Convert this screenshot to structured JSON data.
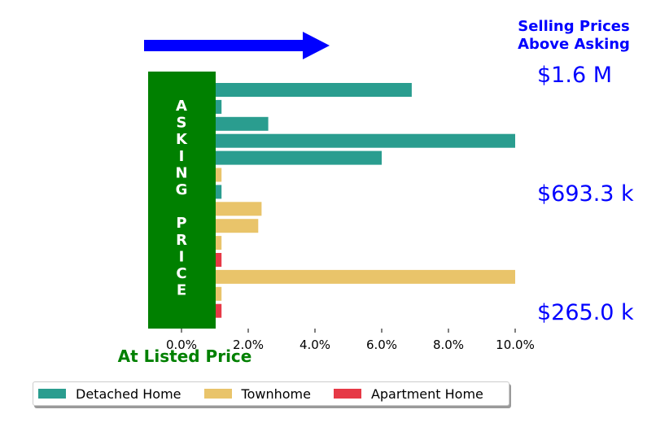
{
  "colors": {
    "detached": "#2a9d8f",
    "townhome": "#e9c46a",
    "apartment": "#e63946",
    "asking_box": "#008000",
    "arrow": "#0000ff",
    "annotation_text": "#0000ff",
    "listed_text": "#008000"
  },
  "annotations": {
    "selling_title_line1": "Selling Prices",
    "selling_title_line2": "Above Asking",
    "at_listed_price": "At Listed Price",
    "asking_price_letters": [
      "A",
      "S",
      "K",
      "I",
      "N",
      "G",
      "",
      "P",
      "R",
      "I",
      "C",
      "E"
    ],
    "price_levels": [
      "$1.6 M",
      "$693.3 k",
      "$265.0 k"
    ]
  },
  "chart_data": {
    "type": "bar",
    "orientation": "horizontal",
    "xlim": [
      -1.0,
      10.0
    ],
    "xticks": [
      0,
      2,
      4,
      6,
      8,
      10
    ],
    "xtick_labels": [
      "0.0%",
      "2.0%",
      "4.0%",
      "6.0%",
      "8.0%",
      "10.0%"
    ],
    "grid": false,
    "legend_placement": "below",
    "bars": [
      {
        "category": "Detached Home",
        "value": 6.9
      },
      {
        "category": "Detached Home",
        "value": 1.2
      },
      {
        "category": "Detached Home",
        "value": 2.6
      },
      {
        "category": "Detached Home",
        "value": 10.0
      },
      {
        "category": "Detached Home",
        "value": 6.0
      },
      {
        "category": "Townhome",
        "value": 1.2
      },
      {
        "category": "Detached Home",
        "value": 1.2
      },
      {
        "category": "Townhome",
        "value": 2.4
      },
      {
        "category": "Townhome",
        "value": 2.3
      },
      {
        "category": "Townhome",
        "value": 1.2
      },
      {
        "category": "Apartment Home",
        "value": 1.2
      },
      {
        "category": "Townhome",
        "value": 10.0
      },
      {
        "category": "Townhome",
        "value": 1.2
      },
      {
        "category": "Apartment Home",
        "value": 1.2
      }
    ]
  },
  "legend": {
    "items": [
      {
        "label": "Detached Home",
        "color": "#2a9d8f"
      },
      {
        "label": "Townhome",
        "color": "#e9c46a"
      },
      {
        "label": "Apartment Home",
        "color": "#e63946"
      }
    ]
  }
}
